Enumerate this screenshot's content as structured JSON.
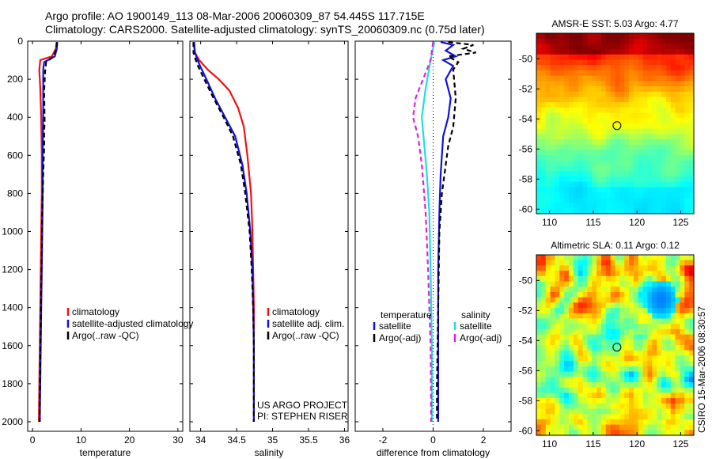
{
  "title_line1": "Argo profile: AO 1900149_113 08-Mar-2006 20060309_87 54.445S 117.715E",
  "title_line2": "Climatology: CARS2000. Satellite-adjusted climatology: synTS_20060309.nc (0.75d later)",
  "credit": "CSIRO 15-Mar-2006 08:30:57",
  "project_text": [
    "US ARGO PROJECT",
    "PI: STEPHEN RISER"
  ],
  "colors": {
    "climatology": "#ee1111",
    "satellite": "#1111dd",
    "argo": "#000000",
    "salinity_satellite": "#22dddd",
    "salinity_argo": "#dd22dd"
  },
  "chart_data": [
    {
      "type": "line",
      "name": "temperature",
      "xlabel": "temperature",
      "ylabel": "",
      "xlim": [
        -1,
        31
      ],
      "ylim": [
        2050,
        0
      ],
      "xticks": [
        0,
        10,
        20,
        30
      ],
      "yticks": [
        0,
        200,
        400,
        600,
        800,
        1000,
        1200,
        1400,
        1600,
        1800,
        2000
      ],
      "legend": [
        "climatology",
        "satellite-adjusted climatology",
        "Argo(..raw -QC)"
      ],
      "series": [
        {
          "name": "climatology",
          "color": "#ee1111",
          "dash": "",
          "points": [
            [
              5.0,
              5
            ],
            [
              4.8,
              40
            ],
            [
              4.0,
              80
            ],
            [
              1.6,
              100
            ],
            [
              1.4,
              150
            ],
            [
              1.6,
              250
            ],
            [
              1.8,
              400
            ],
            [
              1.9,
              600
            ],
            [
              1.9,
              800
            ],
            [
              1.8,
              1000
            ],
            [
              1.7,
              1200
            ],
            [
              1.6,
              1400
            ],
            [
              1.5,
              1600
            ],
            [
              1.4,
              1800
            ],
            [
              1.3,
              2000
            ]
          ]
        },
        {
          "name": "satellite-adjusted climatology",
          "color": "#1111dd",
          "dash": "",
          "points": [
            [
              5.1,
              5
            ],
            [
              5.0,
              40
            ],
            [
              4.6,
              80
            ],
            [
              2.4,
              110
            ],
            [
              2.2,
              150
            ],
            [
              2.2,
              250
            ],
            [
              2.2,
              400
            ],
            [
              2.1,
              600
            ],
            [
              2.1,
              800
            ],
            [
              2.0,
              1000
            ],
            [
              1.9,
              1200
            ],
            [
              1.8,
              1400
            ],
            [
              1.7,
              1600
            ],
            [
              1.6,
              1800
            ],
            [
              1.5,
              2000
            ]
          ]
        },
        {
          "name": "Argo(..raw -QC)",
          "color": "#000000",
          "dash": "6,4",
          "points": [
            [
              5.0,
              5
            ],
            [
              4.9,
              40
            ],
            [
              4.4,
              80
            ],
            [
              2.8,
              110
            ],
            [
              2.6,
              160
            ],
            [
              2.4,
              260
            ],
            [
              2.5,
              420
            ],
            [
              2.4,
              480
            ],
            [
              2.4,
              560
            ],
            [
              2.2,
              700
            ],
            [
              2.0,
              900
            ],
            [
              1.9,
              1100
            ],
            [
              1.8,
              1300
            ],
            [
              1.7,
              1500
            ],
            [
              1.6,
              1700
            ],
            [
              1.5,
              1900
            ],
            [
              1.5,
              2000
            ]
          ]
        }
      ]
    },
    {
      "type": "line",
      "name": "salinity",
      "xlabel": "salinity",
      "ylabel": "",
      "xlim": [
        33.85,
        36.05
      ],
      "ylim": [
        2050,
        0
      ],
      "xticks": [
        34,
        34.5,
        35,
        35.5,
        36
      ],
      "xticklabels": [
        "34",
        "34.5",
        "35",
        "35.5",
        "36"
      ],
      "yticks": [
        0,
        200,
        400,
        600,
        800,
        1000,
        1200,
        1400,
        1600,
        1800,
        2000
      ],
      "legend": [
        "climatology",
        "satellite adj. clim.",
        "Argo(..raw -QC)"
      ],
      "series": [
        {
          "name": "climatology",
          "color": "#ee1111",
          "dash": "",
          "points": [
            [
              33.9,
              5
            ],
            [
              33.92,
              60
            ],
            [
              33.98,
              100
            ],
            [
              34.1,
              150
            ],
            [
              34.25,
              200
            ],
            [
              34.4,
              260
            ],
            [
              34.52,
              350
            ],
            [
              34.6,
              450
            ],
            [
              34.65,
              600
            ],
            [
              34.7,
              800
            ],
            [
              34.72,
              1000
            ],
            [
              34.73,
              1200
            ],
            [
              34.74,
              1400
            ],
            [
              34.74,
              1600
            ],
            [
              34.74,
              1800
            ],
            [
              34.74,
              2000
            ]
          ]
        },
        {
          "name": "satellite adj. clim.",
          "color": "#1111dd",
          "dash": "",
          "points": [
            [
              33.91,
              5
            ],
            [
              33.92,
              60
            ],
            [
              33.98,
              120
            ],
            [
              34.08,
              200
            ],
            [
              34.2,
              300
            ],
            [
              34.34,
              400
            ],
            [
              34.48,
              500
            ],
            [
              34.58,
              650
            ],
            [
              34.64,
              800
            ],
            [
              34.69,
              1000
            ],
            [
              34.72,
              1200
            ],
            [
              34.73,
              1400
            ],
            [
              34.74,
              1600
            ],
            [
              34.74,
              1800
            ],
            [
              34.74,
              2000
            ]
          ]
        },
        {
          "name": "Argo(..raw -QC)",
          "color": "#000000",
          "dash": "6,4",
          "points": [
            [
              33.9,
              5
            ],
            [
              33.9,
              60
            ],
            [
              33.95,
              120
            ],
            [
              34.05,
              200
            ],
            [
              34.18,
              300
            ],
            [
              34.32,
              400
            ],
            [
              34.45,
              500
            ],
            [
              34.56,
              650
            ],
            [
              34.62,
              800
            ],
            [
              34.68,
              1000
            ],
            [
              34.71,
              1200
            ],
            [
              34.73,
              1400
            ],
            [
              34.74,
              1600
            ],
            [
              34.74,
              1800
            ],
            [
              34.74,
              2000
            ]
          ]
        }
      ]
    },
    {
      "type": "line",
      "name": "difference",
      "xlabel": "difference from climatology",
      "ylabel": "",
      "xlim": [
        -3.1,
        3.1
      ],
      "ylim": [
        2050,
        0
      ],
      "xticks": [
        -2,
        0,
        2
      ],
      "yticks": [
        0,
        200,
        400,
        600,
        800,
        1000,
        1200,
        1400,
        1600,
        1800,
        2000
      ],
      "legend_groups": [
        {
          "heading": "temperature",
          "items": [
            "satellite",
            "Argo(-adj)"
          ]
        },
        {
          "heading": "salinity",
          "items": [
            "satellite",
            "Argo(-adj)"
          ]
        }
      ],
      "series": [
        {
          "name": "temperature satellite",
          "color": "#1111dd",
          "dash": "",
          "points": [
            [
              0.3,
              5
            ],
            [
              0.8,
              20
            ],
            [
              0.5,
              50
            ],
            [
              0.9,
              80
            ],
            [
              0.4,
              100
            ],
            [
              0.8,
              130
            ],
            [
              0.5,
              200
            ],
            [
              0.7,
              300
            ],
            [
              0.6,
              400
            ],
            [
              0.4,
              500
            ],
            [
              0.3,
              700
            ],
            [
              0.25,
              900
            ],
            [
              0.2,
              1200
            ],
            [
              0.2,
              1500
            ],
            [
              0.2,
              1800
            ],
            [
              0.2,
              2000
            ]
          ]
        },
        {
          "name": "temperature Argo(-adj)",
          "color": "#000000",
          "dash": "6,4",
          "points": [
            [
              0.6,
              5
            ],
            [
              1.6,
              20
            ],
            [
              1.2,
              40
            ],
            [
              1.7,
              60
            ],
            [
              0.6,
              80
            ],
            [
              1.0,
              110
            ],
            [
              0.8,
              150
            ],
            [
              0.9,
              300
            ],
            [
              0.8,
              450
            ],
            [
              0.6,
              550
            ],
            [
              0.35,
              800
            ],
            [
              0.25,
              1000
            ],
            [
              0.2,
              1400
            ],
            [
              0.15,
              1800
            ],
            [
              0.15,
              2000
            ]
          ]
        },
        {
          "name": "salinity satellite",
          "color": "#22dddd",
          "dash": "",
          "points": [
            [
              0.05,
              5
            ],
            [
              -0.1,
              100
            ],
            [
              -0.3,
              250
            ],
            [
              -0.45,
              400
            ],
            [
              -0.35,
              550
            ],
            [
              -0.25,
              700
            ],
            [
              -0.15,
              900
            ],
            [
              -0.1,
              1200
            ],
            [
              -0.05,
              1600
            ],
            [
              -0.05,
              2000
            ]
          ]
        },
        {
          "name": "salinity Argo(-adj)",
          "color": "#dd22dd",
          "dash": "6,4",
          "points": [
            [
              0.0,
              5
            ],
            [
              -0.1,
              100
            ],
            [
              -0.4,
              200
            ],
            [
              -0.7,
              300
            ],
            [
              -0.8,
              400
            ],
            [
              -0.6,
              500
            ],
            [
              -0.45,
              650
            ],
            [
              -0.3,
              900
            ],
            [
              -0.2,
              1200
            ],
            [
              -0.1,
              1600
            ],
            [
              -0.08,
              2000
            ]
          ]
        }
      ],
      "reference_line": 0
    },
    {
      "type": "heatmap",
      "name": "sst-map",
      "title": "AMSR-E SST: 5.03 Argo: 4.77",
      "xlim": [
        108.5,
        126.5
      ],
      "ylim": [
        -60.3,
        -48.3
      ],
      "xticks": [
        110,
        115,
        120,
        125
      ],
      "yticks": [
        -50,
        -52,
        -54,
        -56,
        -58,
        -60
      ],
      "marker": [
        117.715,
        -54.445
      ]
    },
    {
      "type": "heatmap",
      "name": "sla-map",
      "title": "Altimetric SLA: 0.11 Argo: 0.12",
      "xlim": [
        108.5,
        126.5
      ],
      "ylim": [
        -60.3,
        -48.3
      ],
      "xticks": [
        110,
        115,
        120,
        125
      ],
      "yticks": [
        -50,
        -52,
        -54,
        -56,
        -58,
        -60
      ],
      "marker": [
        117.715,
        -54.445
      ]
    }
  ]
}
